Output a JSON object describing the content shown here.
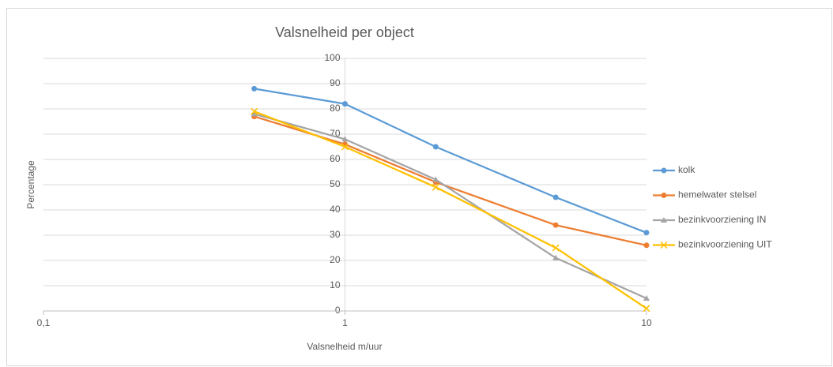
{
  "chart_data": {
    "type": "line",
    "title": "Valsnelheid per object",
    "x_label": "Valsnelheid m/uur",
    "y_label": "Percentage",
    "x": [
      0.5,
      1,
      2,
      5,
      10
    ],
    "xlog": true,
    "xlim": [
      0.1,
      10
    ],
    "xticks": [
      {
        "value": 0.1,
        "label": "0,1"
      },
      1,
      10
    ],
    "ylim": [
      0,
      100
    ],
    "yticks": [
      0,
      10,
      20,
      30,
      40,
      50,
      60,
      70,
      80,
      90,
      100
    ],
    "y_axis_at": 1,
    "grid": true,
    "legend": "right",
    "series": [
      {
        "name": "kolk",
        "color": "#5b9bd5",
        "marker": "circle",
        "values": [
          88,
          82,
          65,
          45,
          31
        ]
      },
      {
        "name": "hemelwater stelsel",
        "color": "#ed7d31",
        "marker": "circle",
        "values": [
          77,
          66,
          51,
          34,
          26
        ]
      },
      {
        "name": "bezinkvoorziening IN",
        "color": "#a5a5a5",
        "marker": "triangle",
        "values": [
          78,
          68,
          52,
          21,
          5
        ]
      },
      {
        "name": "bezinkvoorziening UIT",
        "color": "#ffc000",
        "marker": "x",
        "values": [
          79,
          65,
          49,
          25,
          1
        ]
      }
    ]
  }
}
